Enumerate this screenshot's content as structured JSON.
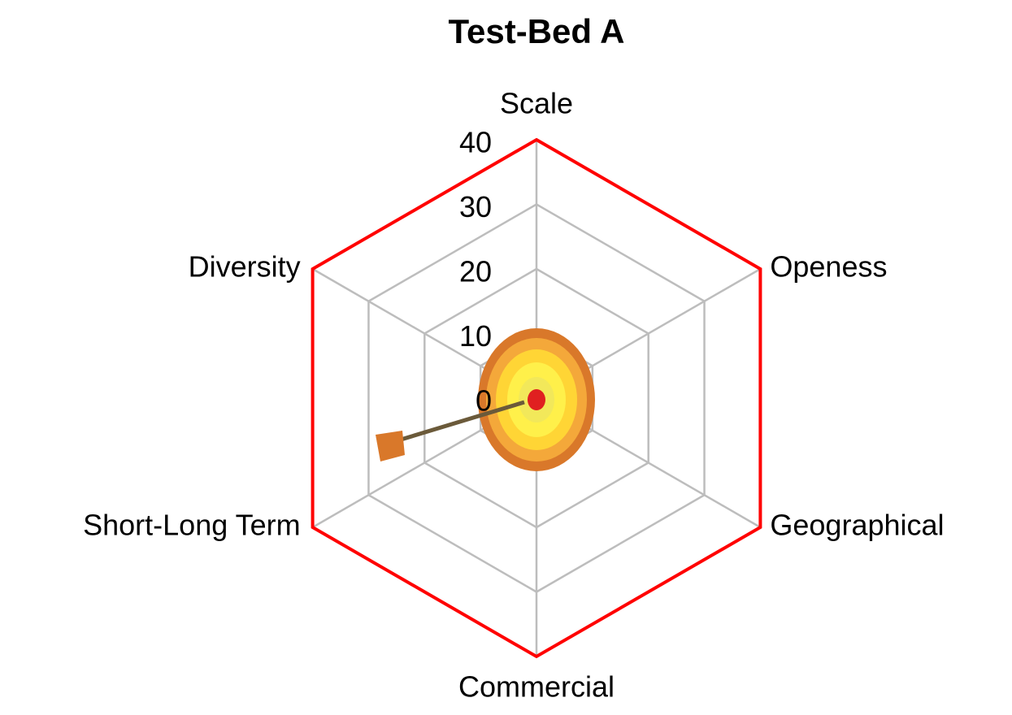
{
  "chart_data": {
    "type": "radar",
    "title": "Test-Bed A",
    "categories": [
      "Scale",
      "Openess",
      "Geographical",
      "Commercial",
      "Short-Long Term",
      "Diversity"
    ],
    "values": [
      40,
      40,
      40,
      40,
      40,
      40
    ],
    "color": "#ff0000",
    "ylim": [
      0,
      40
    ],
    "yticks": [
      0,
      10,
      20,
      30,
      40
    ],
    "grid": true
  }
}
